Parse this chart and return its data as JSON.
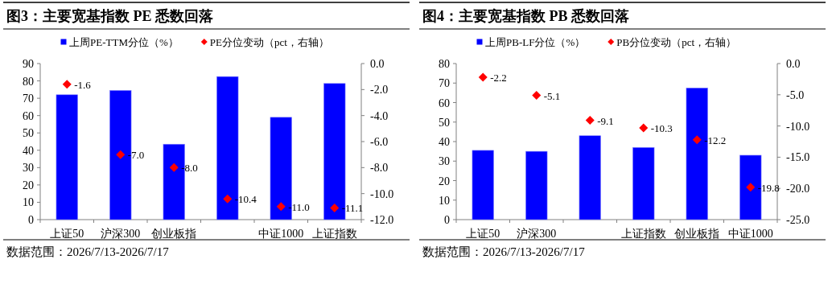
{
  "chart_data": [
    {
      "type": "bar",
      "title": "图3：主要宽基指数 PE 悉数回落",
      "categories": [
        "上证50",
        "沪深300",
        "创业板指",
        null,
        "中证1000",
        "上证指数"
      ],
      "series": [
        {
          "name": "上周PE-TTM分位（%）",
          "color": "#0000ff",
          "values": [
            72,
            74.5,
            43.5,
            82.5,
            59,
            78.5
          ]
        },
        {
          "name": "PE分位变动（pct，右轴）",
          "type": "scatter",
          "axis": "y2",
          "color": "#ff0000",
          "marker": "diamond",
          "values": [
            -1.6,
            -7.0,
            -8.0,
            -10.4,
            -11.0,
            -11.1
          ],
          "value_labels": [
            "-1.6",
            "-7.0",
            "-8.0",
            "-10.4",
            "-11.0",
            "-11.1"
          ]
        }
      ],
      "ylim": [
        0,
        90
      ],
      "yticks": [
        0,
        10,
        20,
        30,
        40,
        50,
        60,
        70,
        80,
        90
      ],
      "y2lim": [
        -12,
        0
      ],
      "y2ticks": [
        {
          "value": 0,
          "label": "0.0"
        },
        {
          "value": -2,
          "label": "-2.0"
        },
        {
          "value": -4,
          "label": "-4.0"
        },
        {
          "value": -6,
          "label": "-6.0"
        },
        {
          "value": -8,
          "label": "-8.0"
        },
        {
          "value": -10,
          "label": "-10.0"
        },
        {
          "value": -12,
          "label": "-12.0"
        }
      ],
      "legend": "top",
      "grid": false,
      "annotations": [
        "数据范围：2026/7/13-2026/7/17"
      ]
    },
    {
      "type": "bar",
      "title": "图4：主要宽基指数 PB 悉数回落",
      "categories": [
        "上证50",
        "沪深300",
        null,
        "上证指数",
        "创业板指",
        "中证1000"
      ],
      "series": [
        {
          "name": "上周PB-LF分位（%）",
          "color": "#0000ff",
          "values": [
            35.5,
            35,
            43,
            37,
            67.5,
            33
          ]
        },
        {
          "name": "PB分位变动（pct，右轴）",
          "type": "scatter",
          "axis": "y2",
          "color": "#ff0000",
          "marker": "diamond",
          "values": [
            -2.2,
            -5.1,
            -9.1,
            -10.3,
            -12.2,
            -19.8
          ],
          "value_labels": [
            "-2.2",
            "-5.1",
            "-9.1",
            "-10.3",
            "-12.2",
            "-19.8"
          ]
        }
      ],
      "ylim": [
        0,
        80
      ],
      "yticks": [
        0,
        10,
        20,
        30,
        40,
        50,
        60,
        70,
        80
      ],
      "y2lim": [
        -25,
        0
      ],
      "y2ticks": [
        {
          "value": 0,
          "label": "0.0"
        },
        {
          "value": -5,
          "label": "-5.0"
        },
        {
          "value": -10,
          "label": "-10.0"
        },
        {
          "value": -15,
          "label": "-15.0"
        },
        {
          "value": -20,
          "label": "-20.0"
        },
        {
          "value": -25,
          "label": "-25.0"
        }
      ],
      "legend": "top",
      "grid": false,
      "annotations": [
        "数据范围：2026/7/13-2026/7/17"
      ]
    }
  ]
}
